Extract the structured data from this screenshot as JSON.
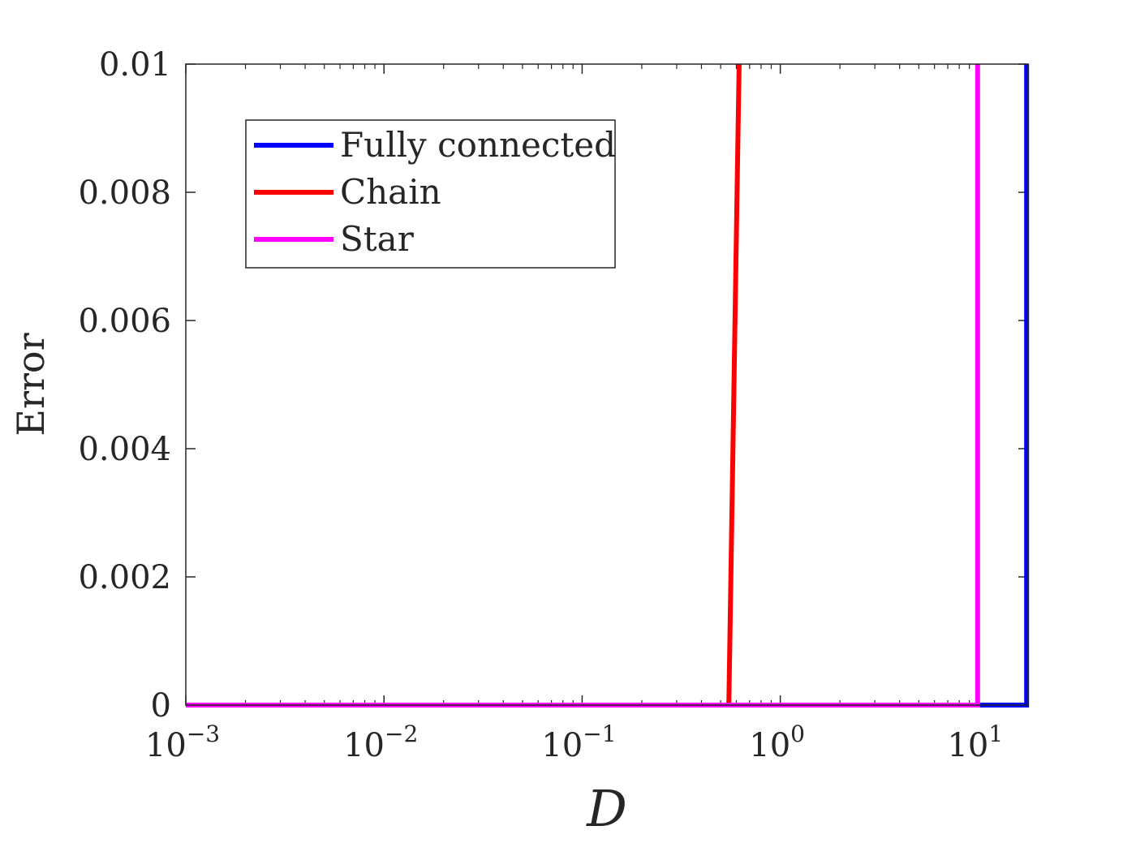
{
  "chart_data": {
    "type": "line",
    "xlabel": "D",
    "ylabel": "Error",
    "xscale": "log",
    "xlim": [
      0.001,
      17.8
    ],
    "ylim": [
      0,
      0.01
    ],
    "x_ticks": [
      {
        "base": "10",
        "exp": "−3",
        "value": 0.001
      },
      {
        "base": "10",
        "exp": "−2",
        "value": 0.01
      },
      {
        "base": "10",
        "exp": "−1",
        "value": 0.1
      },
      {
        "base": "10",
        "exp": "0",
        "value": 1
      },
      {
        "base": "10",
        "exp": "1",
        "value": 10
      }
    ],
    "y_ticks": [
      {
        "label": "0",
        "value": 0
      },
      {
        "label": "0.002",
        "value": 0.002
      },
      {
        "label": "0.004",
        "value": 0.004
      },
      {
        "label": "0.006",
        "value": 0.006
      },
      {
        "label": "0.008",
        "value": 0.008
      },
      {
        "label": "0.01",
        "value": 0.01
      }
    ],
    "grid": false,
    "legend_position": "top-left",
    "series": [
      {
        "name": "Fully connected",
        "color": "#0000ff",
        "points": [
          [
            0.001,
            0
          ],
          [
            17.5,
            0
          ],
          [
            17.5,
            0.01
          ]
        ]
      },
      {
        "name": "Chain",
        "color": "#ff0000",
        "points": [
          [
            0.001,
            0
          ],
          [
            0.55,
            0
          ],
          [
            0.62,
            0.01
          ]
        ]
      },
      {
        "name": "Star",
        "color": "#ff00ff",
        "points": [
          [
            0.001,
            0
          ],
          [
            9.9,
            0
          ],
          [
            9.9,
            0.01
          ]
        ]
      }
    ]
  }
}
